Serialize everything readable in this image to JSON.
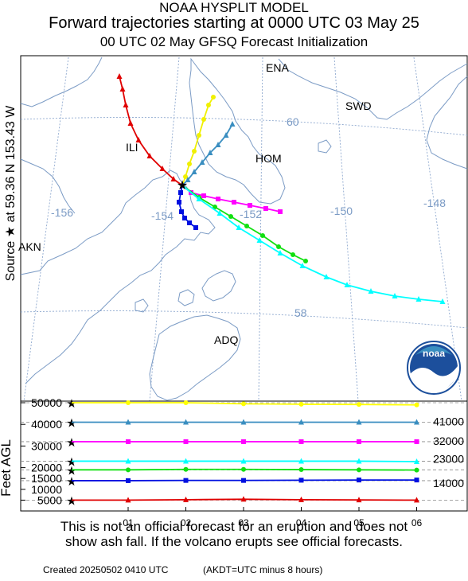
{
  "header": {
    "line1": "NOAA HYSPLIT MODEL",
    "line2": "Forward trajectories starting at 0000 UTC 03 May 25",
    "line3": "00 UTC 02 May    GFSQ  Forecast Initialization"
  },
  "side_label": {
    "prefix": "Source",
    "star": "★",
    "at": "at",
    "location": "59.36 N  153.43 W"
  },
  "map_labels": {
    "places": [
      "ENA",
      "SWD",
      "ILI",
      "HOM",
      "AKN",
      "ADQ"
    ],
    "longitudes": [
      "-156",
      "-154",
      "-152",
      "-150",
      "-148"
    ],
    "latitudes": [
      "60",
      "58"
    ]
  },
  "noaa_logo_text": "noaa",
  "height_axis": {
    "ylabel": "Feet AGL",
    "left_ticks": [
      "50000",
      "40000",
      "30000",
      "20000",
      "15000",
      "10000",
      "5000"
    ],
    "right_labels": [
      "41000",
      "32000",
      "23000",
      "14000"
    ],
    "time_ticks": [
      "01",
      "02",
      "03",
      "04",
      "05",
      "06"
    ]
  },
  "disclaimer": {
    "line1": "This is not an official forecast for an eruption and does not",
    "line2": "show ash fall. If the volcano erupts see official forecasts."
  },
  "footer": {
    "created": "Created 20250502 0410 UTC",
    "note": "(AKDT=UTC minus 8 hours)"
  },
  "colors": {
    "map_lines": "#7b9bc5",
    "grid": "#8fa9cf",
    "red": "#e00000",
    "yellow": "#f0f000",
    "steelblue": "#3a8ec0",
    "magenta": "#ff00ff",
    "green": "#10e010",
    "cyan": "#00ffff",
    "blue": "#0010e0"
  },
  "chart_data": {
    "type": "line",
    "title": "Forward trajectories starting at 0000 UTC 03 May 25",
    "source": {
      "lat": 59.36,
      "lon": -153.43
    },
    "xlabel": "",
    "ylabel": "Feet AGL",
    "x": [
      "01",
      "02",
      "03",
      "04",
      "05",
      "06"
    ],
    "ylim": [
      0,
      50000
    ],
    "series": [
      {
        "color": "#ffff00",
        "marker": "circle",
        "start_height_ft": 50000,
        "heights_ft": [
          50000,
          50000,
          49500,
          49300,
          49200,
          49000
        ]
      },
      {
        "color": "#3a8ec0",
        "marker": "triangle",
        "start_height_ft": 41000,
        "heights_ft": [
          41000,
          41000,
          41000,
          41000,
          41000,
          41000
        ]
      },
      {
        "color": "#ff00ff",
        "marker": "square",
        "start_height_ft": 32000,
        "heights_ft": [
          32000,
          32000,
          32000,
          32000,
          32000,
          32000
        ]
      },
      {
        "color": "#00ffff",
        "marker": "triangle",
        "start_height_ft": 23000,
        "heights_ft": [
          23000,
          23000,
          23000,
          23000,
          23000,
          22800
        ]
      },
      {
        "color": "#10e010",
        "marker": "circle",
        "start_height_ft": 19000,
        "heights_ft": [
          19000,
          19200,
          19200,
          19100,
          19000,
          18900
        ]
      },
      {
        "color": "#0010e0",
        "marker": "square",
        "start_height_ft": 14000,
        "heights_ft": [
          14000,
          14100,
          14100,
          14200,
          14300,
          14300
        ]
      },
      {
        "color": "#e00000",
        "marker": "triangle",
        "start_height_ft": 5000,
        "heights_ft": [
          5000,
          5200,
          5400,
          5200,
          5100,
          5000
        ]
      }
    ]
  }
}
